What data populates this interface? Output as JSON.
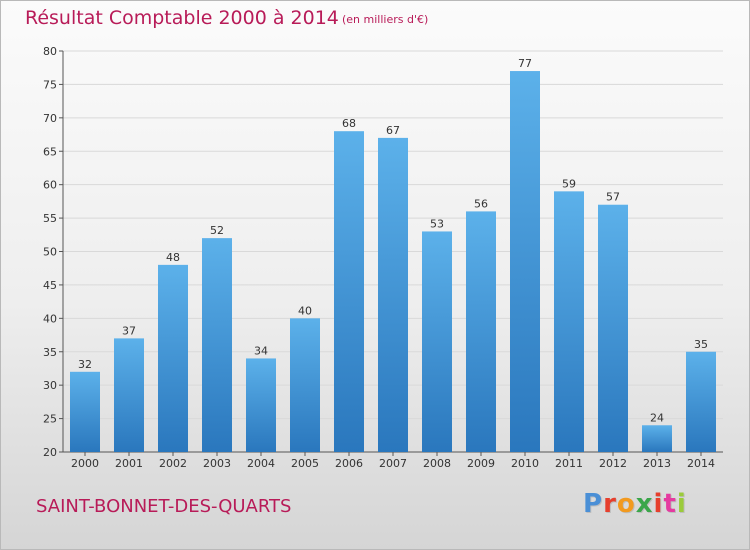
{
  "title": "Résultat Comptable 2000 à 2014",
  "subtitle": "(en milliers d'€)",
  "commune": "SAINT-BONNET-DES-QUARTS",
  "logo": {
    "text": "Proxiti",
    "letter_colors": [
      "#4a8fd6",
      "#e63f2d",
      "#f29a1f",
      "#3aa64a",
      "#e63f2d",
      "#e53aa0",
      "#9bcb3b"
    ]
  },
  "colors": {
    "bar_top": "#5cb1ea",
    "bar_bottom": "#2a77bd",
    "title": "#b81b58"
  },
  "chart_data": {
    "type": "bar",
    "categories": [
      "2000",
      "2001",
      "2002",
      "2003",
      "2004",
      "2005",
      "2006",
      "2007",
      "2008",
      "2009",
      "2010",
      "2011",
      "2012",
      "2013",
      "2014"
    ],
    "values": [
      32,
      37,
      48,
      52,
      34,
      40,
      68,
      67,
      53,
      56,
      77,
      59,
      57,
      24,
      35
    ],
    "ylim": [
      20,
      80
    ],
    "yticks": [
      20,
      25,
      30,
      35,
      40,
      45,
      50,
      55,
      60,
      65,
      70,
      75,
      80
    ],
    "grid": true,
    "title": "Résultat Comptable 2000 à 2014",
    "xlabel": "",
    "ylabel": ""
  }
}
